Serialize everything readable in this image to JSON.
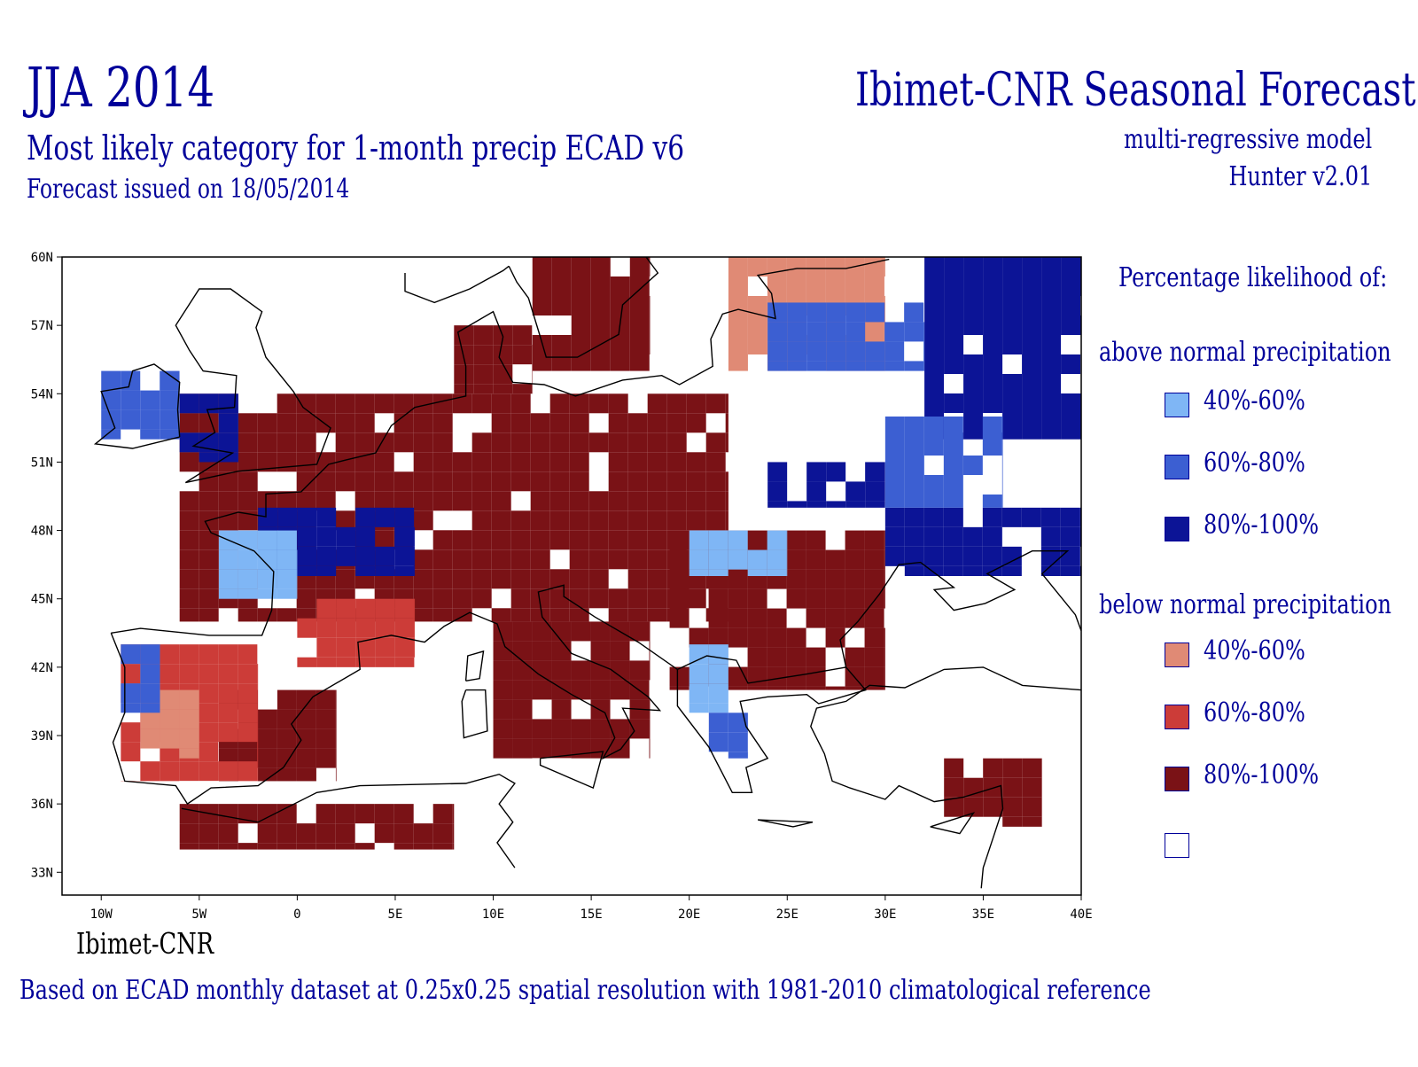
{
  "header": {
    "season": "JJA 2014",
    "subtitle": "Most likely category for 1-month precip ECAD v6",
    "issued": "Forecast issued on 18/05/2014",
    "org_title": "Ibimet-CNR Seasonal Forecast",
    "model": "multi-regressive model",
    "version": "Hunter v2.01"
  },
  "map": {
    "lat_labels": [
      "60N",
      "57N",
      "54N",
      "51N",
      "48N",
      "45N",
      "42N",
      "39N",
      "36N",
      "33N"
    ],
    "lon_labels": [
      "10W",
      "5W",
      "0",
      "5E",
      "10E",
      "15E",
      "20E",
      "25E",
      "30E",
      "35E",
      "40E"
    ],
    "lat_range": [
      32,
      60
    ],
    "lon_range": [
      -12,
      40
    ],
    "colors": {
      "above_40_60": "#7fb6f5",
      "above_60_80": "#3c5fd2",
      "above_80_100": "#0c1496",
      "below_40_60": "#e08a75",
      "below_60_80": "#cc3c38",
      "below_80_100": "#7a1216",
      "none": "#ffffff"
    },
    "regions": [
      {
        "cat": "below_80_100",
        "lon": [
          -6,
          22
        ],
        "lat": [
          44,
          54
        ]
      },
      {
        "cat": "below_80_100",
        "lon": [
          19,
          30
        ],
        "lat": [
          41,
          48
        ]
      },
      {
        "cat": "below_80_100",
        "lon": [
          12,
          18
        ],
        "lat": [
          55,
          60
        ]
      },
      {
        "cat": "below_80_100",
        "lon": [
          8,
          12
        ],
        "lat": [
          54,
          57
        ]
      },
      {
        "cat": "below_80_100",
        "lon": [
          -4,
          2
        ],
        "lat": [
          37,
          41
        ]
      },
      {
        "cat": "below_80_100",
        "lon": [
          -6,
          8
        ],
        "lat": [
          34,
          36
        ]
      },
      {
        "cat": "below_80_100",
        "lon": [
          33,
          38
        ],
        "lat": [
          35,
          38
        ]
      },
      {
        "cat": "below_80_100",
        "lon": [
          10,
          18
        ],
        "lat": [
          38,
          44
        ]
      },
      {
        "cat": "below_60_80",
        "lon": [
          -9,
          -2
        ],
        "lat": [
          37,
          43
        ]
      },
      {
        "cat": "below_60_80",
        "lon": [
          0,
          6
        ],
        "lat": [
          42,
          45
        ]
      },
      {
        "cat": "below_40_60",
        "lon": [
          -8,
          -5
        ],
        "lat": [
          38,
          41
        ]
      },
      {
        "cat": "below_40_60",
        "lon": [
          22,
          30
        ],
        "lat": [
          55,
          60
        ]
      },
      {
        "cat": "above_80_100",
        "lon": [
          -2,
          6
        ],
        "lat": [
          46,
          49
        ]
      },
      {
        "cat": "above_80_100",
        "lon": [
          30,
          40
        ],
        "lat": [
          46,
          49
        ]
      },
      {
        "cat": "above_80_100",
        "lon": [
          32,
          40
        ],
        "lat": [
          52,
          60
        ]
      },
      {
        "cat": "above_80_100",
        "lon": [
          24,
          30
        ],
        "lat": [
          49,
          51
        ]
      },
      {
        "cat": "above_60_80",
        "lon": [
          30,
          36
        ],
        "lat": [
          49,
          53
        ]
      },
      {
        "cat": "above_60_80",
        "lon": [
          24,
          32
        ],
        "lat": [
          55,
          58
        ]
      },
      {
        "cat": "above_60_80",
        "lon": [
          -10,
          -6
        ],
        "lat": [
          52,
          55
        ]
      },
      {
        "cat": "above_60_80",
        "lon": [
          -9,
          -7
        ],
        "lat": [
          40,
          43
        ]
      },
      {
        "cat": "above_40_60",
        "lon": [
          -4,
          0
        ],
        "lat": [
          45,
          48
        ]
      },
      {
        "cat": "above_40_60",
        "lon": [
          20,
          25
        ],
        "lat": [
          46,
          48
        ]
      },
      {
        "cat": "above_40_60",
        "lon": [
          20,
          22
        ],
        "lat": [
          40,
          43
        ]
      },
      {
        "cat": "above_60_80",
        "lon": [
          21,
          23
        ],
        "lat": [
          38,
          40
        ]
      },
      {
        "cat": "above_80_100",
        "lon": [
          -6,
          -3
        ],
        "lat": [
          51,
          54
        ]
      }
    ]
  },
  "legend": {
    "title": "Percentage likelihood of:",
    "above_label": "above normal precipitation",
    "below_label": "below normal precipitation",
    "above": [
      {
        "label": "40%-60%",
        "color": "#7fb6f5"
      },
      {
        "label": "60%-80%",
        "color": "#3c5fd2"
      },
      {
        "label": "80%-100%",
        "color": "#0c1496"
      }
    ],
    "below": [
      {
        "label": "40%-60%",
        "color": "#e08a75"
      },
      {
        "label": "60%-80%",
        "color": "#cc3c38"
      },
      {
        "label": "80%-100%",
        "color": "#7a1216"
      }
    ],
    "none": {
      "label": "",
      "color": "#ffffff"
    }
  },
  "credit": "Ibimet-CNR",
  "footer": "Based on ECAD monthly dataset at 0.25x0.25 spatial resolution with 1981-2010 climatological reference"
}
